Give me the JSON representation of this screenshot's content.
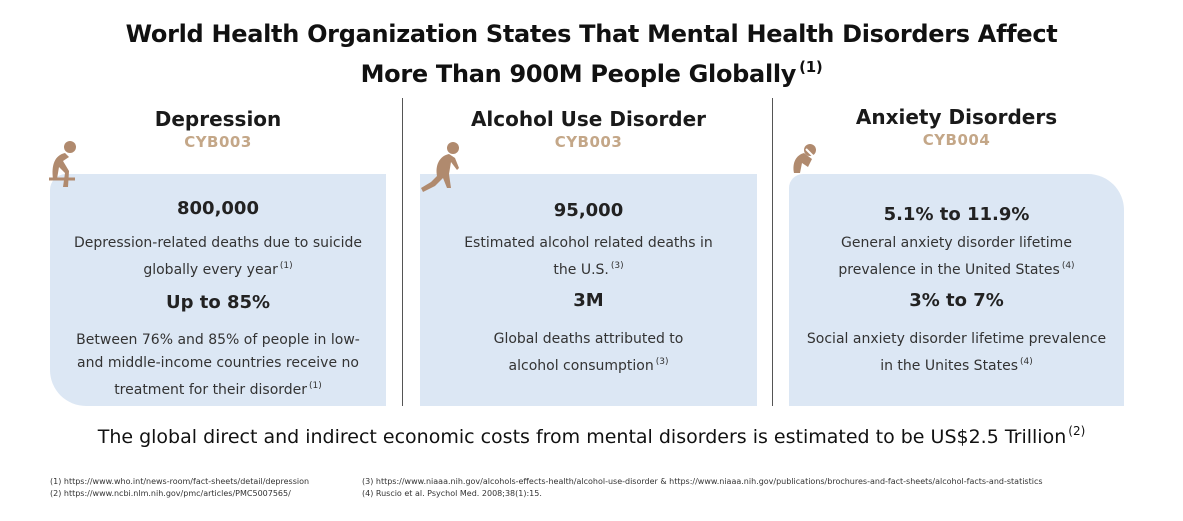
{
  "title": {
    "line1": "World Health Organization States That Mental Health Disorders Affect",
    "line2": "More Than 900M People Globally",
    "ref": "(1)"
  },
  "columns": [
    {
      "name": "Depression",
      "code": "CYB003",
      "figure": "person-hunched-sitting-icon",
      "stats": [
        {
          "value": "800,000",
          "text": "Depression-related deaths due to suicide globally every year",
          "ref": "(1)"
        },
        {
          "value": "Up to 85%",
          "text": "Between 76% and 85% of people in low- and middle-income countries receive no treatment for their disorder",
          "ref": "(1)"
        }
      ]
    },
    {
      "name": "Alcohol Use Disorder",
      "code": "CYB003",
      "figure": "person-slumped-icon",
      "stats": [
        {
          "value": "95,000",
          "text": "Estimated alcohol related deaths in the U.S.",
          "ref": "(3)"
        },
        {
          "value": "3M",
          "text": "Global deaths attributed to alcohol consumption",
          "ref": "(3)"
        }
      ]
    },
    {
      "name": "Anxiety Disorders",
      "code": "CYB004",
      "figure": "person-head-in-hands-icon",
      "stats": [
        {
          "value": "5.1% to 11.9%",
          "text": "General anxiety disorder lifetime prevalence in the United States",
          "ref": "(4)"
        },
        {
          "value": "3% to 7%",
          "text": "Social anxiety disorder lifetime prevalence in the Unites States",
          "ref": "(4)"
        }
      ]
    }
  ],
  "note": {
    "text": "The global direct and indirect economic costs from mental disorders is estimated to be US$2.5 Trillion",
    "ref": "(2)"
  },
  "references": [
    "(1)   https://www.who.int/news-room/fact-sheets/detail/depression",
    "(2)   https://www.ncbi.nlm.nih.gov/pmc/articles/PMC5007565/",
    "(3)   https://www.niaaa.nih.gov/alcohols-effects-health/alcohol-use-disorder & https://www.niaaa.nih.gov/publications/brochures-and-fact-sheets/alcohol-facts-and-statistics",
    "(4)   Ruscio et al. Psychol Med. 2008;38(1):15."
  ],
  "colors": {
    "card": "#dce7f4",
    "accent": "#c4a788",
    "figure": "#b08a6e"
  }
}
